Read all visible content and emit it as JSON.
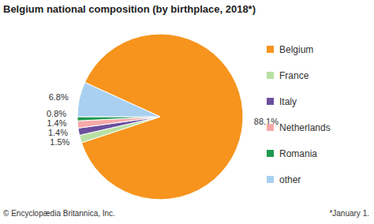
{
  "chart_data": {
    "type": "pie",
    "title": "Belgium national composition (by birthplace, 2018*)",
    "categories": [
      "Belgium",
      "France",
      "Italy",
      "Netherlands",
      "Romania",
      "other"
    ],
    "values": [
      88.1,
      1.5,
      1.4,
      1.4,
      0.8,
      6.8
    ],
    "value_labels": [
      "88.1%",
      "1.5%",
      "1.4%",
      "1.4%",
      "0.8%",
      "6.8%"
    ],
    "colors": [
      "#f7941d",
      "#b8e0a3",
      "#6b4f9e",
      "#f5a9a8",
      "#1f9a4f",
      "#a9d0f0"
    ],
    "data_labels": true,
    "legend": "right",
    "annotations": [
      "© Encyclopædia Britannica, Inc.",
      "*January 1."
    ]
  }
}
